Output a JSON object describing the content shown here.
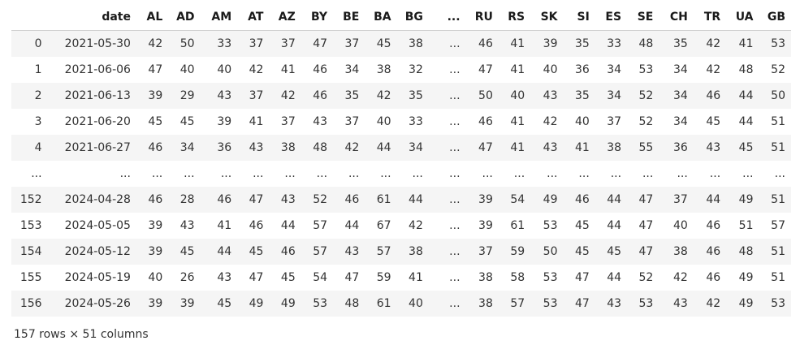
{
  "table": {
    "columns": [
      "",
      "date",
      "AL",
      "AD",
      "AM",
      "AT",
      "AZ",
      "BY",
      "BE",
      "BA",
      "BG",
      "...",
      "RU",
      "RS",
      "SK",
      "SI",
      "ES",
      "SE",
      "CH",
      "TR",
      "UA",
      "GB"
    ],
    "rows": [
      [
        "0",
        "2021-05-30",
        "42",
        "50",
        "33",
        "37",
        "37",
        "47",
        "37",
        "45",
        "38",
        "...",
        "46",
        "41",
        "39",
        "35",
        "33",
        "48",
        "35",
        "42",
        "41",
        "53"
      ],
      [
        "1",
        "2021-06-06",
        "47",
        "40",
        "40",
        "42",
        "41",
        "46",
        "34",
        "38",
        "32",
        "...",
        "47",
        "41",
        "40",
        "36",
        "34",
        "53",
        "34",
        "42",
        "48",
        "52"
      ],
      [
        "2",
        "2021-06-13",
        "39",
        "29",
        "43",
        "37",
        "42",
        "46",
        "35",
        "42",
        "35",
        "...",
        "50",
        "40",
        "43",
        "35",
        "34",
        "52",
        "34",
        "46",
        "44",
        "50"
      ],
      [
        "3",
        "2021-06-20",
        "45",
        "45",
        "39",
        "41",
        "37",
        "43",
        "37",
        "40",
        "33",
        "...",
        "46",
        "41",
        "42",
        "40",
        "37",
        "52",
        "34",
        "45",
        "44",
        "51"
      ],
      [
        "4",
        "2021-06-27",
        "46",
        "34",
        "36",
        "43",
        "38",
        "48",
        "42",
        "44",
        "34",
        "...",
        "47",
        "41",
        "43",
        "41",
        "38",
        "55",
        "36",
        "43",
        "45",
        "51"
      ],
      [
        "...",
        "...",
        "...",
        "...",
        "...",
        "...",
        "...",
        "...",
        "...",
        "...",
        "...",
        "...",
        "...",
        "...",
        "...",
        "...",
        "...",
        "...",
        "...",
        "...",
        "...",
        "..."
      ],
      [
        "152",
        "2024-04-28",
        "46",
        "28",
        "46",
        "47",
        "43",
        "52",
        "46",
        "61",
        "44",
        "...",
        "39",
        "54",
        "49",
        "46",
        "44",
        "47",
        "37",
        "44",
        "49",
        "51"
      ],
      [
        "153",
        "2024-05-05",
        "39",
        "43",
        "41",
        "46",
        "44",
        "57",
        "44",
        "67",
        "42",
        "...",
        "39",
        "61",
        "53",
        "45",
        "44",
        "47",
        "40",
        "46",
        "51",
        "57"
      ],
      [
        "154",
        "2024-05-12",
        "39",
        "45",
        "44",
        "45",
        "46",
        "57",
        "43",
        "57",
        "38",
        "...",
        "37",
        "59",
        "50",
        "45",
        "45",
        "47",
        "38",
        "46",
        "48",
        "51"
      ],
      [
        "155",
        "2024-05-19",
        "40",
        "26",
        "43",
        "47",
        "45",
        "54",
        "47",
        "59",
        "41",
        "...",
        "38",
        "58",
        "53",
        "47",
        "44",
        "52",
        "42",
        "46",
        "49",
        "51"
      ],
      [
        "156",
        "2024-05-26",
        "39",
        "39",
        "45",
        "49",
        "49",
        "53",
        "48",
        "61",
        "40",
        "...",
        "38",
        "57",
        "53",
        "47",
        "43",
        "53",
        "43",
        "42",
        "49",
        "53"
      ]
    ]
  },
  "footer": {
    "shape_text": "157 rows × 51 columns"
  }
}
